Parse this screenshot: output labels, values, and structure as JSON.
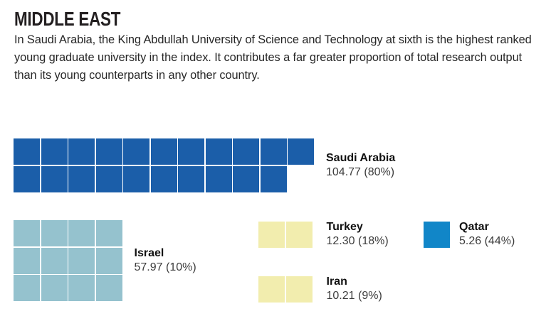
{
  "header": {
    "title": "MIDDLE EAST",
    "description": "In Saudi Arabia, the King Abdullah University of Science and Technology at sixth is the highest ranked young graduate university in the index. It contributes a far greater proportion of total research output than its young counterparts in any other country."
  },
  "colors": {
    "background": "#FFFFFF",
    "title_text": "#231F20",
    "body_text": "#272727",
    "saudi_arabia_blue": "#1B5EA9",
    "israel_teal": "#95C2CE",
    "turkey_iran_yellow": "#F2EDAE",
    "qatar_blue": "#1186C8"
  },
  "chart_data": {
    "type": "waffle",
    "title": "MIDDLE EAST",
    "unit_value_per_square": 5,
    "legend_position": "label beside each waffle block",
    "grid": "off",
    "series": [
      {
        "name": "Saudi Arabia",
        "value": 104.77,
        "percent_share": "80%",
        "value_label": "104.77 (80%)",
        "squares": 21,
        "rows": [
          11,
          10
        ],
        "color": "#1B5EA9"
      },
      {
        "name": "Israel",
        "value": 57.97,
        "percent_share": "10%",
        "value_label": "57.97 (10%)",
        "squares": 12,
        "rows": [
          4,
          4,
          4
        ],
        "color": "#95C2CE"
      },
      {
        "name": "Turkey",
        "value": 12.3,
        "percent_share": "18%",
        "value_label": "12.30 (18%)",
        "squares": 2,
        "rows": [
          2
        ],
        "color": "#F2EDAE"
      },
      {
        "name": "Qatar",
        "value": 5.26,
        "percent_share": "44%",
        "value_label": "5.26 (44%)",
        "squares": 1,
        "rows": [
          1
        ],
        "color": "#1186C8"
      },
      {
        "name": "Iran",
        "value": 10.21,
        "percent_share": "9%",
        "value_label": "10.21 (9%)",
        "squares": 2,
        "rows": [
          2
        ],
        "color": "#F2EDAE"
      }
    ]
  }
}
